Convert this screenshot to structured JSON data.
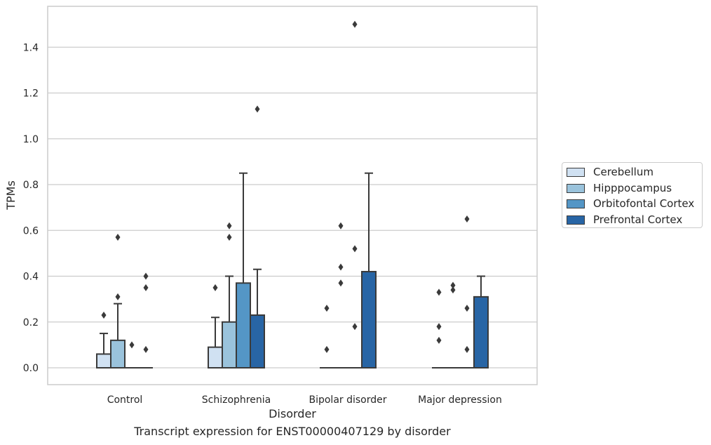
{
  "chart_data": {
    "type": "bar",
    "title": "",
    "xlabel": "Disorder",
    "ylabel": "TPMs",
    "caption": "Transcript expression for ENST00000407129 by disorder",
    "categories": [
      "Control",
      "Schizophrenia",
      "Bipolar disorder",
      "Major depression"
    ],
    "ylim": [
      -0.07,
      1.57
    ],
    "yticks": [
      0.0,
      0.2,
      0.4,
      0.6,
      0.8,
      1.0,
      1.2,
      1.4
    ],
    "ytick_labels": [
      "0.0",
      "0.2",
      "0.4",
      "0.6",
      "0.8",
      "1.0",
      "1.2",
      "1.4"
    ],
    "grid": true,
    "legend_position": "right",
    "series": [
      {
        "name": "Cerebellum",
        "color": "#d0e1f2",
        "values": [
          0.06,
          0.09,
          0.0,
          0.0
        ],
        "whiskers": [
          0.15,
          0.22,
          0.0,
          0.0
        ],
        "outliers": [
          [
            0.23
          ],
          [
            0.35
          ],
          [
            0.08,
            0.26
          ],
          [
            0.12,
            0.18,
            0.33
          ]
        ]
      },
      {
        "name": "Hipppocampus",
        "color": "#9ac3dc",
        "values": [
          0.12,
          0.2,
          0.0,
          0.0
        ],
        "whiskers": [
          0.28,
          0.4,
          0.0,
          0.0
        ],
        "outliers": [
          [
            0.31,
            0.57
          ],
          [
            0.57,
            0.62
          ],
          [
            0.37,
            0.44,
            0.62
          ],
          [
            0.34,
            0.36
          ]
        ]
      },
      {
        "name": "Orbitofontal Cortex",
        "color": "#5496c6",
        "values": [
          0.0,
          0.37,
          0.0,
          0.0
        ],
        "whiskers": [
          0.0,
          0.85,
          0.0,
          0.0
        ],
        "outliers": [
          [
            0.1
          ],
          [],
          [
            0.18,
            0.52,
            1.5
          ],
          [
            0.08,
            0.26,
            0.65
          ]
        ]
      },
      {
        "name": "Prefrontal Cortex",
        "color": "#2865a5",
        "values": [
          0.0,
          0.23,
          0.42,
          0.31
        ],
        "whiskers": [
          0.0,
          0.43,
          0.85,
          0.4
        ],
        "outliers": [
          [
            0.08,
            0.35,
            0.4
          ],
          [
            1.13
          ],
          [],
          []
        ]
      }
    ]
  }
}
